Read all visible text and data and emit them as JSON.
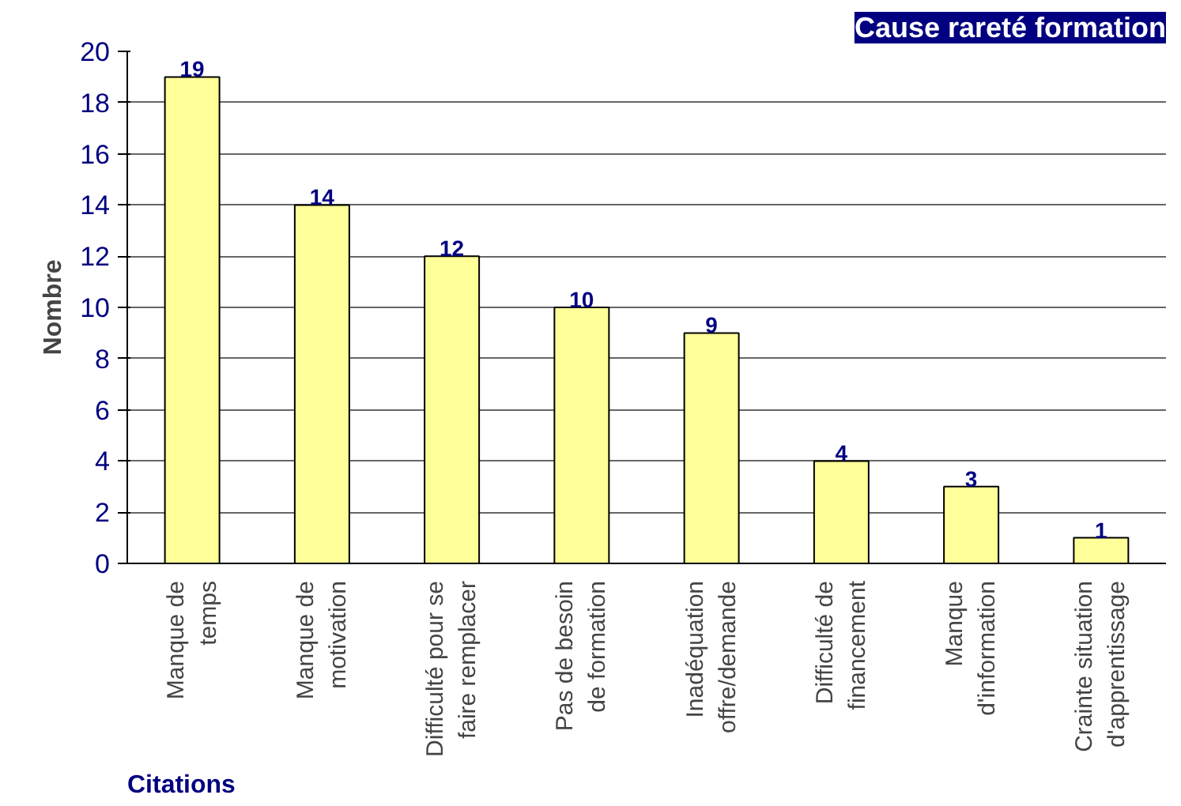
{
  "chart_data": {
    "type": "bar",
    "title": "Cause rareté formation",
    "xlabel": "Citations",
    "ylabel": "Nombre",
    "categories": [
      "Manque de\ntemps",
      "Manque de\nmotivation",
      "Difficulté pour se\nfaire remplacer",
      "Pas de besoin\nde formation",
      "Inadéquation\noffre/demande",
      "Difficulté de\nfinancement",
      "Manque\nd'information",
      "Crainte situation\nd'apprentissage"
    ],
    "values": [
      19,
      14,
      12,
      10,
      9,
      4,
      3,
      1
    ],
    "color": "#ffff99",
    "data_labels": true,
    "ylim": [
      0,
      20
    ],
    "yticks": [
      0,
      2,
      4,
      6,
      8,
      10,
      12,
      14,
      16,
      18,
      20
    ],
    "grid": "y"
  }
}
